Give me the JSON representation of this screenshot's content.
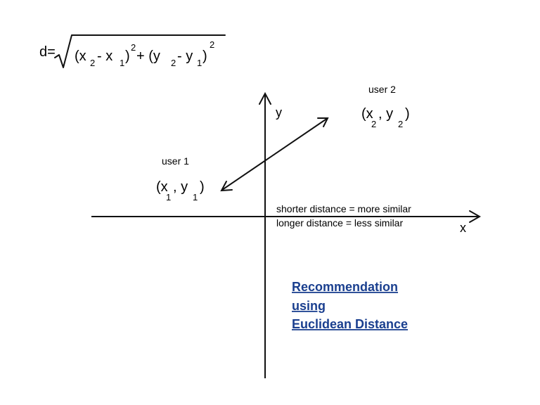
{
  "formula": {
    "lhs": "d=",
    "open1": "(x",
    "sub1": "2",
    "minus1": " - x",
    "sub2": "1",
    "close1": ")",
    "sup1": "2",
    "plus": "+ (y",
    "sub3": "2",
    "minus2": "- y",
    "sub4": "1",
    "close2": ")",
    "sup2": "2"
  },
  "axes": {
    "x_label": "x",
    "y_label": "y"
  },
  "user1": {
    "name": "user 1",
    "open": "(x",
    "sub_x": "1",
    "comma": " , y",
    "sub_y": "1",
    "close": ")"
  },
  "user2": {
    "name": "user 2",
    "open": "(x",
    "sub_x": "2",
    "comma": " , y",
    "sub_y": "2",
    "close": ")"
  },
  "notes": {
    "shorter": "shorter distance = more similar",
    "longer": "longer distance = less similar"
  },
  "link": {
    "line1": "Recommendation",
    "line2": "using",
    "line3": "Euclidean Distance",
    "color": "#1a3f8f"
  }
}
